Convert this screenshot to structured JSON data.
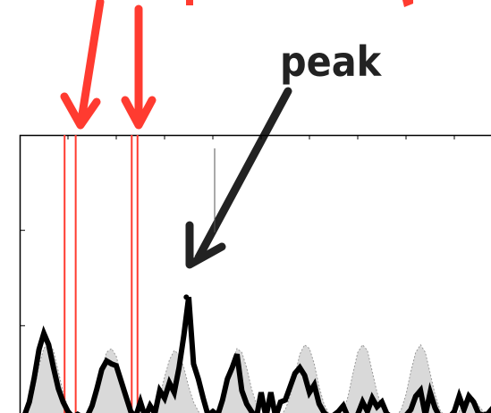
{
  "annotation": {
    "label": "peak",
    "color": "#222222"
  },
  "colors": {
    "marker": "#ff3b30",
    "signal": "#000000",
    "fill": "#d9d9d9",
    "background": "#ffffff",
    "axis": "#000000"
  },
  "chart_data": {
    "type": "line",
    "title": "",
    "xlabel": "",
    "ylabel": "",
    "grid": false,
    "legend": "none",
    "xlim": [
      0,
      100
    ],
    "ylim": [
      0,
      30
    ],
    "marker_lines_x": [
      9.3,
      11.6,
      23.2,
      24.4
    ],
    "peak": {
      "x": 34.5,
      "y": 13.0
    },
    "series": [
      {
        "style": "filled-area",
        "x": [
          0,
          1,
          2,
          3,
          4,
          5,
          6,
          7,
          8,
          9,
          10,
          11,
          12,
          13,
          14,
          15,
          16,
          17,
          18,
          19,
          20,
          21,
          22,
          23,
          24,
          25,
          26,
          27,
          28,
          29,
          30,
          31,
          32,
          33,
          34,
          35,
          36,
          37,
          38,
          39,
          40,
          41,
          42,
          43,
          44,
          45,
          46,
          47,
          48,
          49,
          50,
          51,
          52,
          53,
          54,
          55,
          56,
          57,
          58,
          59,
          60,
          61,
          62,
          63,
          64,
          65,
          66,
          67,
          68,
          69,
          70,
          71,
          72,
          73,
          74,
          75,
          76,
          77,
          78,
          79,
          80,
          81,
          82,
          83,
          84,
          85,
          86,
          87,
          88,
          89,
          90,
          91,
          92,
          93,
          94,
          95,
          96,
          97,
          98,
          99,
          100
        ],
        "values": [
          0.3,
          0.6,
          1.5,
          3.2,
          5.8,
          7.6,
          8.2,
          7.4,
          5.2,
          3.0,
          1.4,
          0.6,
          0.4,
          0.5,
          0.9,
          1.8,
          3.4,
          5.6,
          7.2,
          7.6,
          6.8,
          4.8,
          2.8,
          1.4,
          0.7,
          0.4,
          0.3,
          0.5,
          1.2,
          2.6,
          4.6,
          6.4,
          7.4,
          7.0,
          5.6,
          3.6,
          2.0,
          1.0,
          0.5,
          0.4,
          0.4,
          0.9,
          2.0,
          4.0,
          6.2,
          7.6,
          7.2,
          5.6,
          3.4,
          1.8,
          0.8,
          0.5,
          0.5,
          0.5,
          0.6,
          1.2,
          2.6,
          4.8,
          7.0,
          8.0,
          7.6,
          6.0,
          3.6,
          1.8,
          0.8,
          0.5,
          0.6,
          1.0,
          2.6,
          5.0,
          7.2,
          8.0,
          7.4,
          5.2,
          3.0,
          1.4,
          0.6,
          0.4,
          0.5,
          1.2,
          2.8,
          5.2,
          7.2,
          8.0,
          7.2,
          5.0,
          2.8,
          1.2,
          0.5,
          0.4,
          0.5,
          1.0,
          2.0,
          2.8,
          2.4,
          1.6,
          1.0,
          0.8,
          1.0,
          1.6,
          2.0
        ]
      },
      {
        "style": "thick-line",
        "x": [
          0,
          1,
          2,
          3,
          4,
          5,
          6,
          7,
          8,
          9,
          10,
          11,
          12,
          13,
          14,
          15,
          16,
          17,
          18,
          19,
          20,
          21,
          22,
          23,
          24,
          25,
          26,
          27,
          28,
          29,
          30,
          31,
          32,
          33,
          34,
          35,
          36,
          37,
          38,
          39,
          40,
          41,
          42,
          43,
          44,
          45,
          46,
          47,
          48,
          49,
          50,
          51,
          52,
          53,
          54,
          55,
          56,
          57,
          58,
          59,
          60,
          61,
          62,
          63,
          64,
          65,
          66,
          67,
          68,
          69,
          70,
          71,
          72,
          73,
          74,
          75,
          76,
          77,
          78,
          79,
          80,
          81,
          82,
          83,
          84,
          85,
          86,
          87,
          88,
          89,
          90,
          91,
          92,
          93,
          94,
          95,
          96,
          97,
          98,
          99,
          100
        ],
        "values": [
          0.4,
          0.6,
          2.0,
          4.5,
          7.5,
          9.2,
          8.0,
          5.6,
          3.4,
          2.0,
          1.0,
          0.4,
          0.7,
          0.4,
          0.5,
          1.6,
          3.4,
          5.4,
          6.3,
          6.0,
          5.8,
          4.2,
          2.6,
          1.0,
          0.4,
          2.0,
          0.4,
          1.6,
          0.8,
          3.2,
          2.4,
          4.0,
          3.0,
          5.6,
          9.0,
          13.0,
          6.0,
          4.4,
          2.4,
          0.6,
          1.0,
          0.6,
          2.2,
          4.4,
          5.6,
          7.0,
          3.2,
          1.8,
          1.0,
          0.3,
          3.0,
          0.4,
          3.0,
          0.4,
          2.0,
          2.2,
          3.6,
          5.0,
          5.6,
          4.8,
          3.0,
          3.8,
          1.8,
          0.9,
          0.4,
          0.6,
          1.0,
          1.6,
          0.4,
          0.2,
          0.7,
          2.0,
          1.0,
          2.4,
          1.5,
          2.0,
          0.8,
          0.4,
          0.3,
          0.4,
          0.6,
          1.2,
          2.6,
          3.2,
          0.6,
          3.0,
          1.4,
          0.4,
          0.2,
          0.4,
          1.0,
          2.6,
          1.2,
          2.6,
          2.0,
          0.8,
          0.6,
          0.8,
          1.4,
          2.0,
          1.6
        ]
      }
    ]
  }
}
